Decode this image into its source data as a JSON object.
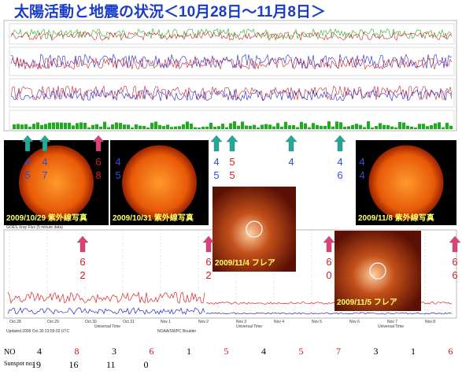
{
  "title": "太陽活動と地震の状況＜10月28日～11月8日＞",
  "photos": [
    "2009/10/29 紫外線写真",
    "2009/10/31 紫外線写真",
    "2009/11/8 紫外線写真",
    "2009/11/4 フレア",
    "2009/11/5 フレア"
  ],
  "upper_marks": [
    [
      "4",
      "5"
    ],
    [
      "4",
      "7"
    ],
    [
      "6",
      "8"
    ],
    [
      "4",
      "5"
    ],
    [
      "4",
      "5"
    ],
    [
      "5",
      "5"
    ],
    [
      "4"
    ],
    [
      "4",
      "6"
    ],
    [
      "4",
      "4"
    ]
  ],
  "lower_marks": [
    [
      "6",
      "2"
    ],
    [
      "6",
      "2"
    ],
    [
      "6",
      "0"
    ],
    [
      "6",
      "6"
    ]
  ],
  "chart_labels": {
    "xray_title": "GOES Xray Flux (5 minute data)",
    "universal_time": "Universal Time",
    "updated": "Updated 2009 Oct 30 23:55:02 UTC",
    "noaa": "NOAA/SWPC Boulder"
  },
  "dates": [
    "Oct 28",
    "Oct 29",
    "Oct 30",
    "Oct 31",
    "Nov 1",
    "Nov 2",
    "Nov 3",
    "Nov 4",
    "Nov 5",
    "Nov 6",
    "Nov 7",
    "Nov 8"
  ],
  "table": {
    "no_label": "NO",
    "no": [
      4,
      8,
      3,
      6,
      1,
      5,
      4,
      5,
      7,
      3,
      1,
      6
    ],
    "sunspot_label": "Sunspot no.",
    "sunspot": [
      19,
      16,
      11,
      0
    ]
  }
}
